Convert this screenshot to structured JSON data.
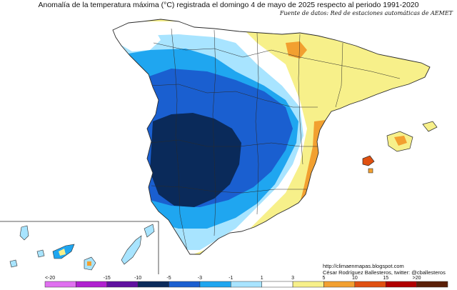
{
  "title": "Anomalía de la temperatura máxima (°C) registrada el domingo 4 de mayo de 2025 respecto al periodo 1991-2020",
  "source": "Fuente de datos: Red de estaciones automáticas de AEMET",
  "credit_url": "http://climaenmapas.blogspot.com",
  "credit_author": "César Rodríguez Ballesteros, twitter: @cballesteros",
  "legend": {
    "labels": [
      "<-20",
      "-15",
      "-10",
      "-5",
      "-3",
      "-1",
      "1",
      "3",
      "5",
      "10",
      "15",
      ">20"
    ],
    "colors": [
      "#e070f0",
      "#b020d0",
      "#6010a0",
      "#0a2a5a",
      "#1a5fd0",
      "#1fa6f0",
      "#a8e4ff",
      "#ffffff",
      "#f7f08a",
      "#f2a030",
      "#e05010",
      "#b00000",
      "#5a1f08"
    ]
  },
  "colors": {
    "land_base": "#ffffff",
    "outline": "#2a2a2a",
    "sea": "#ffffff"
  }
}
